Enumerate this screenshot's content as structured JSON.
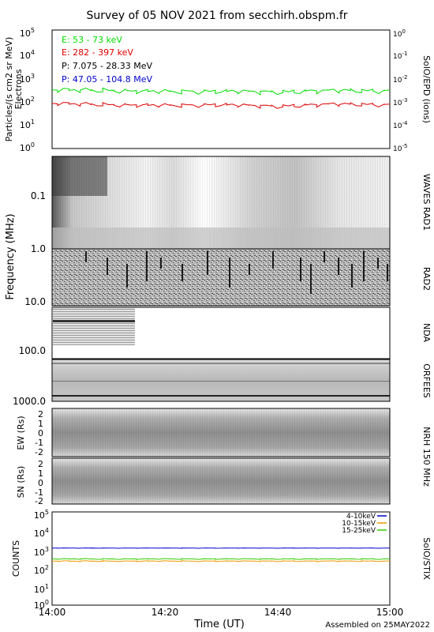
{
  "title": "Survey of 05 NOV 2021 from secchirh.obspm.fr",
  "assembled": "Assembled on 25MAY2022",
  "xaxis": {
    "label": "Time (UT)",
    "ticks": [
      "14:00",
      "14:20",
      "14:40",
      "15:00"
    ],
    "range": [
      "14:00",
      "15:00"
    ]
  },
  "colors": {
    "electron_low": "#00dd00",
    "electron_high": "#dd0000",
    "proton_low": "#000000",
    "proton_high": "#0000cc",
    "stix_4_10": "#0000cc",
    "stix_10_15": "#ee9900",
    "stix_15_25": "#33cc00"
  },
  "chart_data": [
    {
      "type": "line",
      "panel": "SolO/EPD",
      "ylabel_left": "Particles/(s cm2 sr MeV)",
      "ylabel_left2": "Electrons",
      "ylabel_right": "SolO/EPD (ions)",
      "ylim_left": [
        1,
        100000
      ],
      "ylim_right": [
        1e-05,
        1
      ],
      "yscale": "log",
      "left_ticks": [
        "10^0",
        "10^1",
        "10^2",
        "10^3",
        "10^4",
        "10^5"
      ],
      "right_ticks": [
        "10^-5",
        "10^-4",
        "10^-3",
        "10^-2",
        "10^-1",
        "10^0"
      ],
      "legend": [
        "E: 53 - 73 keV",
        "E: 282 - 397 keV",
        "P: 7.075 - 28.33 MeV",
        "P: 47.05 - 104.8 MeV"
      ],
      "legend_position": "top-left",
      "series": [
        {
          "name": "E: 53 - 73 keV",
          "x": [
            "14:00",
            "14:10",
            "14:20",
            "14:30",
            "14:40",
            "14:50",
            "15:00"
          ],
          "values": [
            300,
            280,
            250,
            260,
            240,
            280,
            270
          ]
        },
        {
          "name": "E: 282 - 397 keV",
          "x": [
            "14:00",
            "14:10",
            "14:20",
            "14:30",
            "14:40",
            "14:50",
            "15:00"
          ],
          "values": [
            80,
            70,
            65,
            70,
            60,
            75,
            70
          ]
        }
      ]
    },
    {
      "type": "heatmap",
      "panel": "WAVES RAD1",
      "ylabel": "Frequency (MHz)",
      "yscale": "log",
      "ylim": [
        0.02,
        1.0
      ],
      "ticks": [
        "0.1",
        "1.0"
      ]
    },
    {
      "type": "heatmap",
      "panel": "RAD2",
      "ylim": [
        1.0,
        14.0
      ],
      "ticks": [
        "10.0"
      ]
    },
    {
      "type": "heatmap",
      "panel": "NDA",
      "ylim": [
        14.0,
        80.0
      ],
      "ticks": [
        "100.0"
      ]
    },
    {
      "type": "heatmap",
      "panel": "ORFEES",
      "ylim": [
        140.0,
        1000.0
      ],
      "ticks": [
        "1000.0"
      ]
    },
    {
      "type": "heatmap",
      "panel": "NRH 150 MHz",
      "ylabel": "EW (Rs)",
      "ylim": [
        -2.5,
        2.5
      ],
      "ticks": [
        "-2",
        "-1",
        "0",
        "1",
        "2"
      ]
    },
    {
      "type": "heatmap",
      "panel": "NRH 150 MHz",
      "ylabel": "SN (Rs)",
      "ylim": [
        -2.5,
        2.5
      ],
      "ticks": [
        "-2",
        "-1",
        "0",
        "1",
        "2"
      ]
    },
    {
      "type": "line",
      "panel": "SolO/STIX",
      "ylabel": "COUNTS",
      "ylabel_right": "SolO/STIX",
      "yscale": "log",
      "ylim": [
        1,
        100000
      ],
      "ticks": [
        "10^0",
        "10^1",
        "10^2",
        "10^3",
        "10^4",
        "10^5"
      ],
      "legend": [
        "4-10keV",
        "10-15keV",
        "15-25keV"
      ],
      "legend_position": "top-right",
      "series": [
        {
          "name": "4-10keV",
          "x": [
            "14:00",
            "14:30",
            "15:00"
          ],
          "values": [
            1150,
            1150,
            1150
          ]
        },
        {
          "name": "10-15keV",
          "x": [
            "14:00",
            "14:30",
            "15:00"
          ],
          "values": [
            230,
            230,
            230
          ]
        },
        {
          "name": "15-25keV",
          "x": [
            "14:00",
            "14:30",
            "15:00"
          ],
          "values": [
            300,
            300,
            300
          ]
        }
      ]
    }
  ]
}
